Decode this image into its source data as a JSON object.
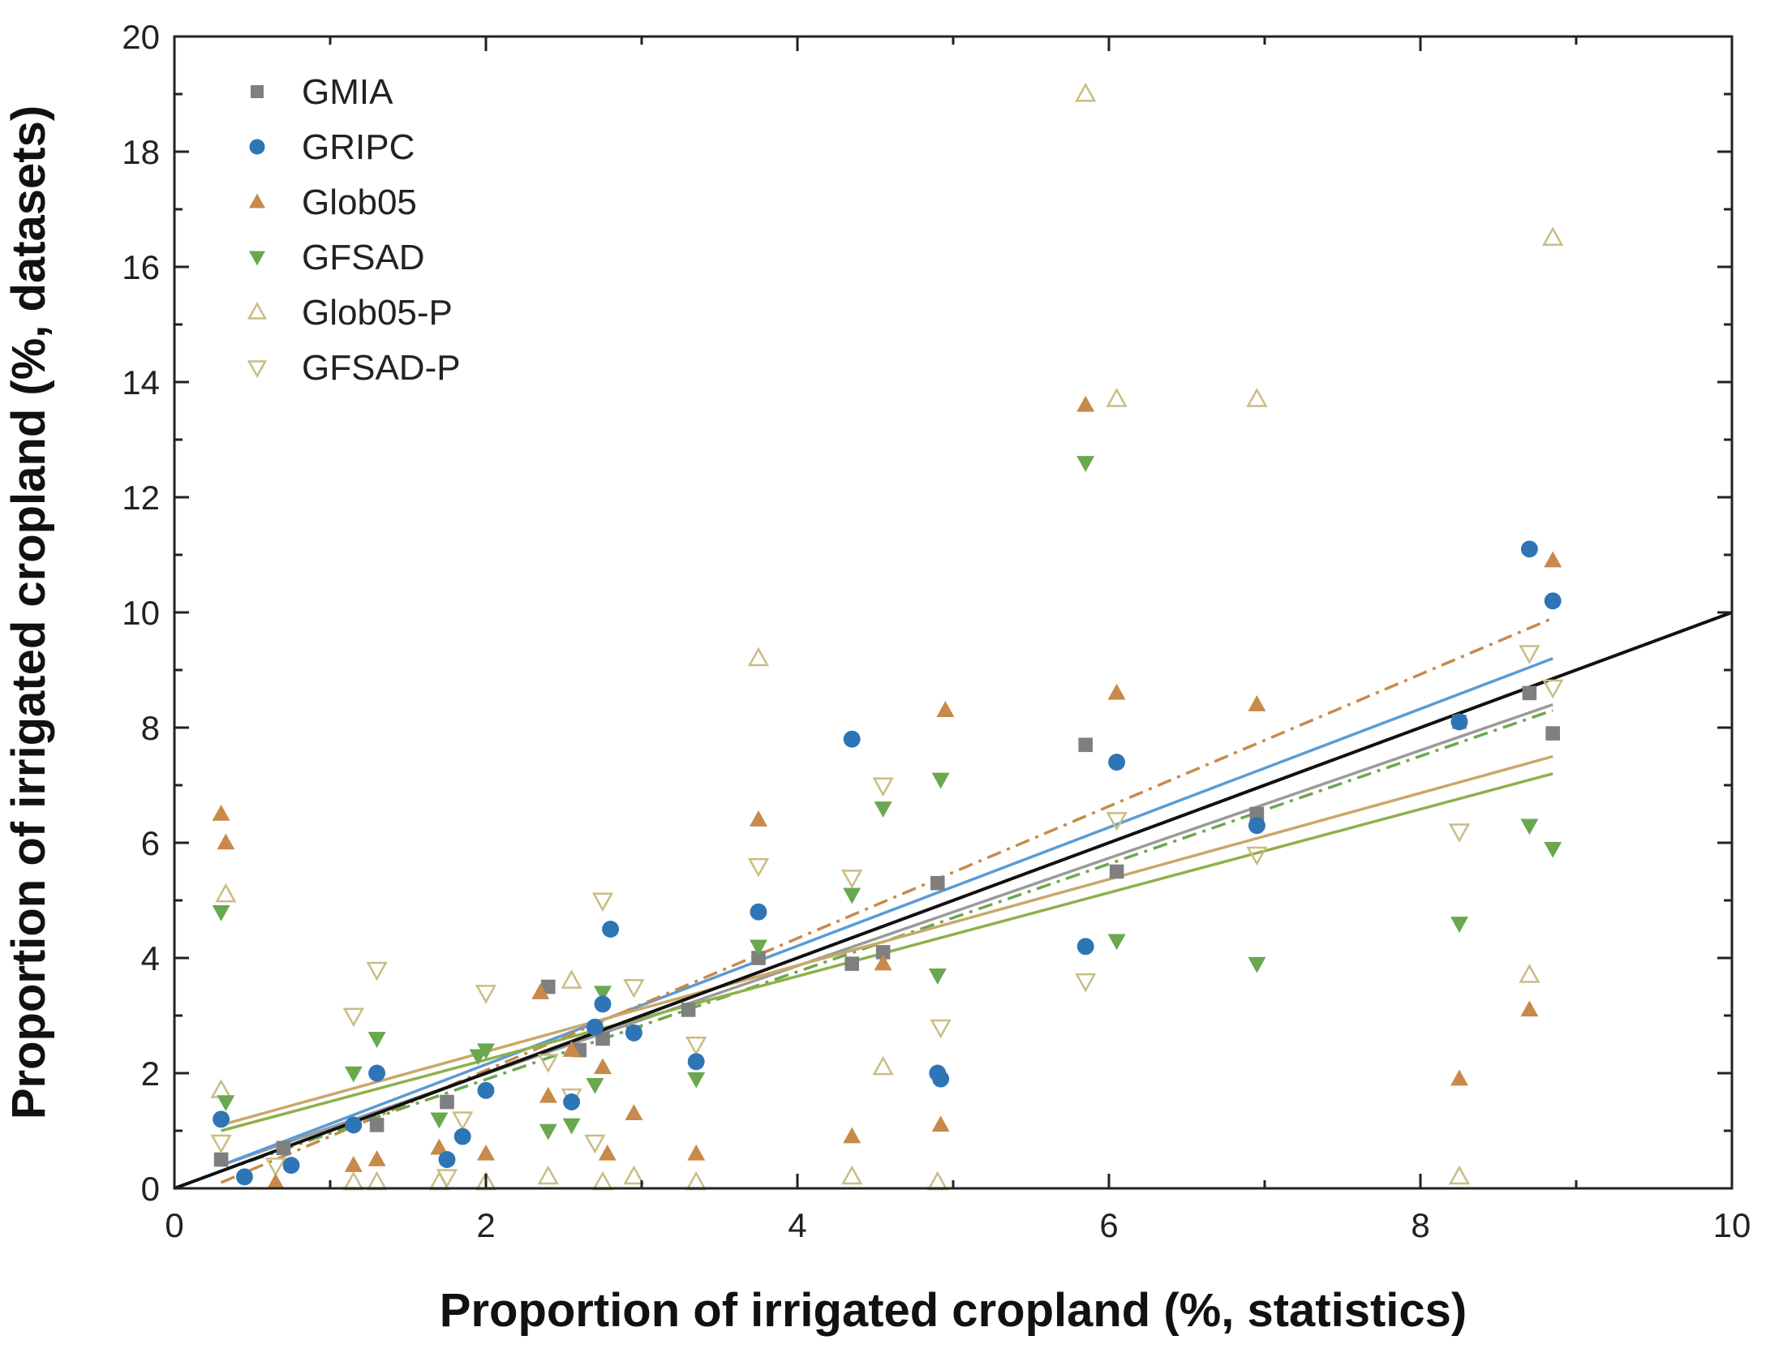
{
  "chart_data": {
    "type": "scatter",
    "title": "",
    "xlabel": "Proportion of irrigated cropland (%, statistics)",
    "ylabel": "Proportion of irrigated cropland (%, datasets)",
    "xlim": [
      0,
      10
    ],
    "ylim": [
      0,
      20
    ],
    "xticks": [
      "0",
      "2",
      "4",
      "6",
      "8",
      "10"
    ],
    "yticks": [
      "0",
      "2",
      "4",
      "6",
      "8",
      "10",
      "12",
      "14",
      "16",
      "18",
      "20"
    ],
    "grid": false,
    "legend_position": "top-left",
    "series": [
      {
        "name": "GMIA",
        "marker": "square",
        "filled": true,
        "color": "#7f7f7f",
        "x": [
          0.3,
          0.7,
          1.3,
          1.75,
          2.4,
          2.6,
          2.75,
          3.3,
          3.75,
          4.35,
          4.55,
          4.9,
          5.85,
          6.05,
          6.95,
          8.25,
          8.7,
          8.85
        ],
        "y": [
          0.5,
          0.7,
          1.1,
          1.5,
          3.5,
          2.4,
          2.6,
          3.1,
          4.0,
          3.9,
          4.1,
          5.3,
          7.7,
          5.5,
          6.5,
          8.1,
          8.6,
          7.9
        ]
      },
      {
        "name": "GRIPC",
        "marker": "circle",
        "filled": true,
        "color": "#2e75b6",
        "x": [
          0.3,
          0.45,
          0.75,
          1.15,
          1.3,
          1.75,
          1.85,
          2.0,
          2.55,
          2.7,
          2.75,
          2.8,
          2.95,
          3.35,
          3.75,
          4.35,
          4.9,
          4.92,
          5.85,
          6.05,
          6.95,
          8.25,
          8.7,
          8.85
        ],
        "y": [
          1.2,
          0.2,
          0.4,
          1.1,
          2.0,
          0.5,
          0.9,
          1.7,
          1.5,
          2.8,
          3.2,
          4.5,
          2.7,
          2.2,
          4.8,
          7.8,
          2.0,
          1.9,
          4.2,
          7.4,
          6.3,
          8.1,
          11.1,
          10.2
        ]
      },
      {
        "name": "Glob05",
        "marker": "triangle-up",
        "filled": true,
        "color": "#c8894a",
        "x": [
          0.3,
          0.33,
          0.65,
          1.15,
          1.3,
          1.7,
          2.0,
          2.35,
          2.4,
          2.55,
          2.75,
          2.78,
          2.95,
          3.35,
          3.75,
          4.35,
          4.55,
          4.92,
          4.95,
          5.85,
          6.05,
          6.95,
          8.25,
          8.7,
          8.85
        ],
        "y": [
          6.5,
          6.0,
          0.1,
          0.4,
          0.5,
          0.7,
          0.6,
          3.4,
          1.6,
          2.4,
          2.1,
          0.6,
          1.3,
          0.6,
          6.4,
          0.9,
          3.9,
          1.1,
          8.3,
          13.6,
          8.6,
          8.4,
          1.9,
          3.1,
          10.9
        ]
      },
      {
        "name": "GFSAD",
        "marker": "triangle-down",
        "filled": true,
        "color": "#6aa84f",
        "x": [
          0.3,
          0.33,
          1.15,
          1.3,
          1.7,
          1.95,
          2.0,
          2.4,
          2.55,
          2.7,
          2.75,
          2.95,
          3.35,
          3.75,
          4.35,
          4.55,
          4.9,
          4.92,
          5.85,
          6.05,
          6.95,
          8.25,
          8.7,
          8.85
        ],
        "y": [
          4.8,
          1.5,
          2.0,
          2.6,
          1.2,
          2.3,
          2.4,
          1.0,
          1.1,
          1.8,
          3.4,
          2.7,
          1.9,
          4.2,
          5.1,
          6.6,
          3.7,
          7.1,
          12.6,
          4.3,
          3.9,
          4.6,
          6.3,
          5.9
        ]
      },
      {
        "name": "Glob05-P",
        "marker": "triangle-up",
        "filled": false,
        "color": "#c9bd84",
        "x": [
          0.3,
          0.33,
          1.15,
          1.3,
          1.7,
          2.0,
          2.4,
          2.55,
          2.75,
          2.95,
          3.35,
          3.75,
          4.35,
          4.55,
          4.9,
          5.85,
          6.05,
          6.95,
          8.25,
          8.7,
          8.85
        ],
        "y": [
          1.7,
          5.1,
          0.1,
          0.1,
          0.1,
          0.1,
          0.2,
          3.6,
          0.1,
          0.2,
          0.1,
          9.2,
          0.2,
          2.1,
          0.1,
          19.0,
          13.7,
          13.7,
          0.2,
          3.7,
          16.5
        ]
      },
      {
        "name": "GFSAD-P",
        "marker": "triangle-down",
        "filled": false,
        "color": "#c9bd84",
        "x": [
          0.3,
          0.65,
          1.15,
          1.3,
          1.75,
          1.85,
          2.0,
          2.4,
          2.55,
          2.7,
          2.75,
          2.95,
          3.35,
          3.75,
          4.35,
          4.55,
          4.92,
          5.85,
          6.05,
          6.95,
          8.25,
          8.7,
          8.85
        ],
        "y": [
          0.8,
          0.4,
          3.0,
          3.8,
          0.2,
          1.2,
          3.4,
          2.2,
          1.6,
          0.8,
          5.0,
          3.5,
          2.5,
          5.6,
          5.4,
          7.0,
          2.8,
          3.6,
          6.4,
          5.8,
          6.2,
          9.3,
          8.7
        ]
      }
    ],
    "fit_lines": [
      {
        "name": "GMIA fit",
        "color": "#9a9a9a",
        "style": "solid",
        "x": [
          0.3,
          8.85
        ],
        "y": [
          0.4,
          8.4
        ]
      },
      {
        "name": "GRIPC fit",
        "color": "#5b9bd5",
        "style": "solid",
        "x": [
          0.3,
          8.85
        ],
        "y": [
          0.4,
          9.2
        ]
      },
      {
        "name": "Glob05 fit",
        "color": "#c8894a",
        "style": "dashdot",
        "x": [
          0.3,
          8.85
        ],
        "y": [
          0.1,
          9.9
        ]
      },
      {
        "name": "GFSAD fit",
        "color": "#6aa84f",
        "style": "dashdot",
        "x": [
          0.3,
          8.85
        ],
        "y": [
          0.3,
          8.3
        ]
      },
      {
        "name": "Glob05-P fit",
        "color": "#c9a86a",
        "style": "solid",
        "x": [
          0.3,
          8.85
        ],
        "y": [
          1.1,
          7.5
        ]
      },
      {
        "name": "GFSAD-P fit",
        "color": "#8fb04a",
        "style": "solid",
        "x": [
          0.3,
          8.85
        ],
        "y": [
          1.0,
          7.2
        ]
      },
      {
        "name": "1:1 line",
        "color": "#111111",
        "style": "solid",
        "x": [
          0,
          10
        ],
        "y": [
          0,
          10
        ]
      }
    ]
  }
}
